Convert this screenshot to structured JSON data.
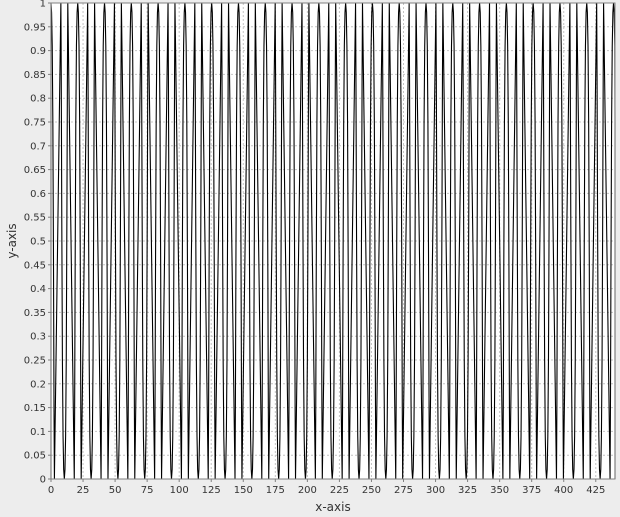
{
  "chart_data": {
    "type": "line",
    "title": "",
    "xlabel": "x-axis",
    "ylabel": "y-axis",
    "xlim": [
      0,
      440
    ],
    "ylim": [
      0,
      1
    ],
    "grid": true,
    "x_ticks": [
      0,
      25,
      50,
      75,
      100,
      125,
      150,
      175,
      200,
      225,
      250,
      275,
      300,
      325,
      350,
      375,
      400,
      425
    ],
    "y_ticks": [
      0,
      0.05,
      0.1,
      0.15,
      0.2,
      0.25,
      0.3,
      0.35,
      0.4,
      0.45,
      0.5,
      0.55,
      0.6,
      0.65,
      0.7,
      0.75,
      0.8,
      0.85,
      0.9,
      0.95,
      1
    ],
    "series": [
      {
        "color": "#000000",
        "period": 20.9,
        "first_peak_x": 10.4,
        "peak_value": 1,
        "trough_value": 0,
        "profile": [
          [
            0,
            0
          ],
          [
            0.5,
            0.02
          ],
          [
            1.0,
            0.09
          ],
          [
            1.5,
            0.25
          ],
          [
            2.0,
            0.55
          ],
          [
            2.4,
            0.85
          ],
          [
            2.7,
            1.0
          ]
        ]
      }
    ],
    "colors": {
      "plot_bg": "#ffffff",
      "outer_bg": "#ededed",
      "grid": "#c4c4c4",
      "line": "#000000",
      "axis": "#808080"
    }
  }
}
